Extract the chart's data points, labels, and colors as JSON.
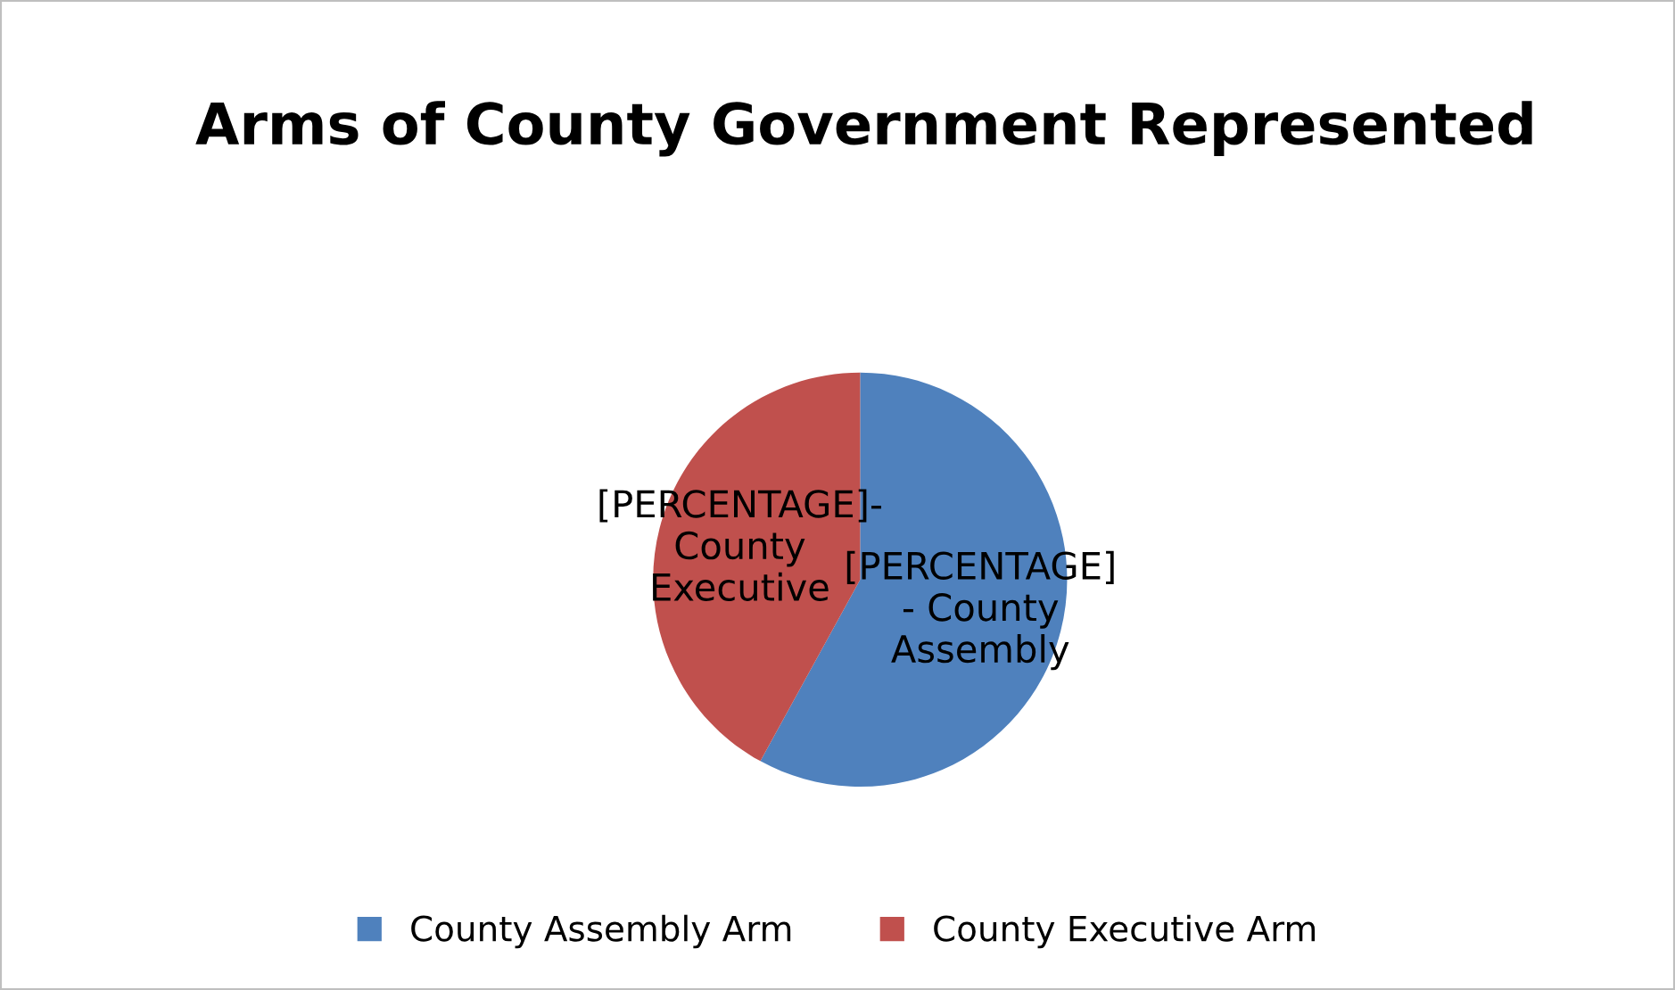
{
  "chart_data": {
    "type": "pie",
    "title": "Arms of County Government Represented",
    "categories": [
      "County Assembly Arm",
      "County Executive Arm"
    ],
    "values": [
      58,
      42
    ],
    "colors": [
      "#4f81bd",
      "#c0504d"
    ],
    "value_labels": [
      "[PERCENTAGE]\n- County\nAssembly",
      "[PERCENTAGE]-\nCounty\nExecutive"
    ],
    "legend": "bottom"
  }
}
